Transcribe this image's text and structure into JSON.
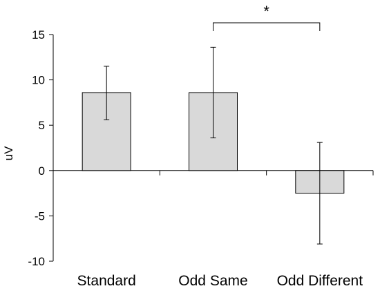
{
  "chart_data": {
    "type": "bar",
    "categories": [
      "Standard",
      "Odd Same",
      "Odd Different"
    ],
    "values": [
      8.6,
      8.6,
      -2.5
    ],
    "error_low": [
      5.6,
      3.6,
      -8.1
    ],
    "error_high": [
      11.5,
      13.6,
      3.1
    ],
    "ylabel": "uV",
    "xlabel": "",
    "title": "",
    "ylim": [
      -10,
      15
    ],
    "yticks": [
      -10,
      -5,
      0,
      5,
      10,
      15
    ],
    "ytick_labels": [
      "-10",
      "-5",
      "0",
      "5",
      "10",
      "15"
    ],
    "grid": false,
    "bar_color": "#d9d9d9",
    "bar_edge_color": "#000000",
    "significance": {
      "from": "Odd Same",
      "to": "Odd Different",
      "label": "*"
    }
  }
}
